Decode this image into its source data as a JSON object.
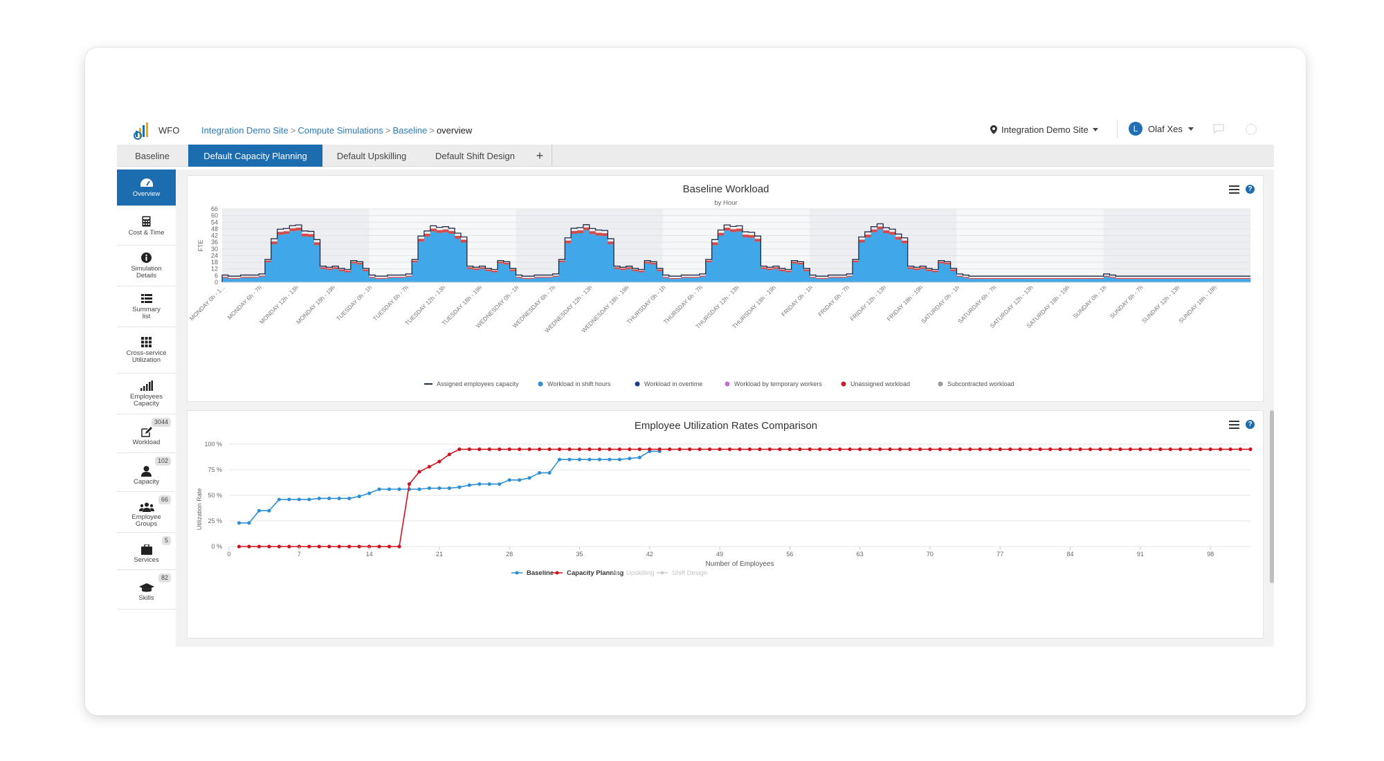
{
  "header": {
    "app_name": "WFO",
    "breadcrumbs": [
      "Integration Demo Site",
      "Compute Simulations",
      "Baseline"
    ],
    "breadcrumb_current": "overview",
    "site_label": "Integration Demo Site",
    "user_initial": "L",
    "user_name": "Olaf Xes"
  },
  "tabs": [
    {
      "label": "Baseline",
      "active": false
    },
    {
      "label": "Default Capacity Planning",
      "active": true
    },
    {
      "label": "Default Upskilling",
      "active": false
    },
    {
      "label": "Default Shift Design",
      "active": false
    }
  ],
  "tab_add_label": "+",
  "sidebar": [
    {
      "label": "Overview",
      "icon": "speedometer-icon",
      "active": true
    },
    {
      "label": "Cost & Time",
      "icon": "calculator-icon"
    },
    {
      "label": "Simulation Details",
      "icon": "info-icon"
    },
    {
      "label": "Summary list",
      "icon": "list-icon"
    },
    {
      "label": "Cross-service Utilization",
      "icon": "grid-icon"
    },
    {
      "label": "Employees Capacity",
      "icon": "signal-bars-icon"
    },
    {
      "label": "Workload",
      "icon": "edit-icon",
      "badge": "3044"
    },
    {
      "label": "Capacity",
      "icon": "person-icon",
      "badge": "102"
    },
    {
      "label": "Employee Groups",
      "icon": "group-icon",
      "badge": "66"
    },
    {
      "label": "Services",
      "icon": "briefcase-icon",
      "badge": "5"
    },
    {
      "label": "Skills",
      "icon": "graduation-cap-icon",
      "badge": "82"
    }
  ],
  "colors": {
    "accent": "#1c6cb0",
    "baseline": "#2b8fd6",
    "planning": "#d0111b",
    "shift": "#40a8e8",
    "unassigned": "#d54b4b"
  },
  "chart_data": [
    {
      "type": "area",
      "title": "Baseline Workload",
      "subtitle": "by Hour",
      "ylabel": "FTE",
      "ylim": [
        0,
        66
      ],
      "yticks": [
        0,
        6,
        12,
        18,
        24,
        30,
        36,
        42,
        48,
        54,
        60,
        66
      ],
      "xtick_labels": [
        "MONDAY 0h - 1...",
        "MONDAY 6h - 7h",
        "MONDAY 12h - 13h",
        "MONDAY 18h - 19h",
        "TUESDAY 0h - 1h",
        "TUESDAY 6h - 7h",
        "TUESDAY 12h - 13h",
        "TUESDAY 18h - 19h",
        "WEDNESDAY 0h - 1h",
        "WEDNESDAY 6h - 7h",
        "WEDNESDAY 12h - 13h",
        "WEDNESDAY 18h - 19h",
        "THURSDAY 0h - 1h",
        "THURSDAY 6h - 7h",
        "THURSDAY 12h - 13h",
        "THURSDAY 18h - 19h",
        "FRIDAY 0h - 1h",
        "FRIDAY 6h - 7h",
        "FRIDAY 12h - 13h",
        "FRIDAY 18h - 19h",
        "SATURDAY 0h - 1h",
        "SATURDAY 6h - 7h",
        "SATURDAY 12h - 13h",
        "SATURDAY 18h - 19h",
        "SUNDAY 0h - 1h",
        "SUNDAY 6h - 7h",
        "SUNDAY 12h - 13h",
        "SUNDAY 18h - 19h"
      ],
      "legend": [
        "Assigned employees capacity",
        "Workload in shift hours",
        "Workload in overtime",
        "Workload by temporary workers",
        "Unassigned workload",
        "Subcontracted workload"
      ],
      "weekday_hourly_workload": [
        4,
        3,
        3,
        4,
        4,
        4,
        5,
        18,
        35,
        42,
        45,
        46,
        45,
        42,
        40,
        35,
        12,
        11,
        12,
        10,
        9,
        17,
        16,
        10
      ],
      "weekend_hourly_workload": [
        5,
        4,
        3,
        3,
        3,
        3,
        3,
        3,
        3,
        3,
        3,
        3,
        3,
        3,
        3,
        3,
        3,
        3,
        3,
        3,
        3,
        3,
        3,
        3
      ],
      "series": [
        {
          "name": "Assigned employees capacity"
        },
        {
          "name": "Workload in shift hours"
        },
        {
          "name": "Unassigned workload"
        }
      ]
    },
    {
      "type": "line",
      "title": "Employee Utilization Rates Comparison",
      "xlabel": "Number of Employees",
      "ylabel": "Utilization Rate",
      "xlim": [
        0,
        102
      ],
      "ylim": [
        0,
        100
      ],
      "xticks": [
        0,
        7,
        14,
        21,
        28,
        35,
        42,
        49,
        56,
        63,
        70,
        77,
        84,
        91,
        98
      ],
      "yticks": [
        "0 %",
        "25 %",
        "50 %",
        "75 %",
        "100 %"
      ],
      "legend": [
        "Baseline",
        "Capacity Planning",
        "Upskilling",
        "Shift Design"
      ],
      "series": [
        {
          "name": "Baseline",
          "color": "#2b8fd6",
          "x": [
            1,
            2,
            3,
            4,
            5,
            6,
            7,
            8,
            9,
            10,
            11,
            12,
            13,
            14,
            15,
            16,
            17,
            18,
            19,
            20,
            21,
            22,
            23,
            24,
            25,
            26,
            27,
            28,
            29,
            30,
            31,
            32,
            33,
            34,
            35,
            36,
            37,
            38,
            39,
            40,
            41,
            42,
            43
          ],
          "y": [
            23,
            23,
            35,
            35,
            46,
            46,
            46,
            46,
            47,
            47,
            47,
            47,
            49,
            52,
            56,
            56,
            56,
            56,
            56,
            57,
            57,
            57,
            58,
            60,
            61,
            61,
            61,
            65,
            65,
            67,
            72,
            72,
            85,
            85,
            85,
            85,
            85,
            85,
            85,
            86,
            87,
            93,
            93
          ]
        },
        {
          "name": "Capacity Planning",
          "color": "#d0111b",
          "x": [
            1,
            2,
            3,
            4,
            5,
            6,
            7,
            8,
            9,
            10,
            11,
            12,
            13,
            14,
            15,
            16,
            17,
            18,
            19,
            20,
            21,
            22,
            23,
            24,
            25,
            26,
            27,
            28,
            29,
            30,
            31,
            32,
            33,
            34,
            35,
            36,
            37,
            38,
            39,
            40,
            41,
            42,
            43,
            44,
            45,
            46,
            47,
            48,
            49,
            50,
            51,
            52,
            53,
            54,
            55,
            56,
            57,
            58,
            59,
            60,
            61,
            62,
            63,
            64,
            65,
            66,
            67,
            68,
            69,
            70,
            71,
            72,
            73,
            74,
            75,
            76,
            77,
            78,
            79,
            80,
            81,
            82,
            83,
            84,
            85,
            86,
            87,
            88,
            89,
            90,
            91,
            92,
            93,
            94,
            95,
            96,
            97,
            98,
            99,
            100,
            101,
            102
          ],
          "y": [
            0,
            0,
            0,
            0,
            0,
            0,
            0,
            0,
            0,
            0,
            0,
            0,
            0,
            0,
            0,
            0,
            0,
            61,
            73,
            78,
            83,
            90,
            95,
            95,
            95,
            95,
            95,
            95,
            95,
            95,
            95,
            95,
            95,
            95,
            95,
            95,
            95,
            95,
            95,
            95,
            95,
            95,
            95,
            95,
            95,
            95,
            95,
            95,
            95,
            95,
            95,
            95,
            95,
            95,
            95,
            95,
            95,
            95,
            95,
            95,
            95,
            95,
            95,
            95,
            95,
            95,
            95,
            95,
            95,
            95,
            95,
            95,
            95,
            95,
            95,
            95,
            95,
            95,
            95,
            95,
            95,
            95,
            95,
            95,
            95,
            95,
            95,
            95,
            95,
            95,
            95,
            95,
            95,
            95,
            95,
            95,
            95,
            95,
            95,
            95,
            95,
            95
          ]
        },
        {
          "name": "Upskilling",
          "color": "#cccccc",
          "hidden": true
        },
        {
          "name": "Shift Design",
          "color": "#cccccc",
          "hidden": true
        }
      ]
    }
  ]
}
